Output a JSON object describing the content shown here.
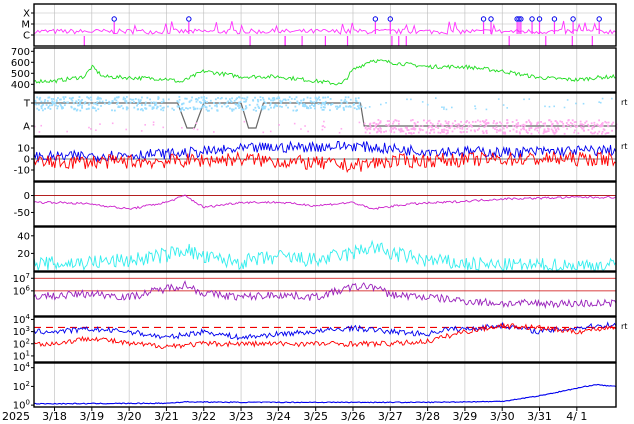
{
  "chart_data": {
    "type": "line",
    "year_label": "2025",
    "x_dates": [
      "3/18",
      "3/19",
      "3/20",
      "3/21",
      "3/22",
      "3/23",
      "3/24",
      "3/25",
      "3/26",
      "3/27",
      "3/28",
      "3/29",
      "3/30",
      "3/31",
      "4/ 1"
    ],
    "side_mark": "rt",
    "colors": {
      "magenta": "#ff33ff",
      "green": "#22dd22",
      "cyan_light": "#99ddff",
      "pink_light": "#ffaaee",
      "red": "#ff0000",
      "blue": "#0000ee",
      "purple": "#cc22cc",
      "cyan": "#33eeee",
      "violet": "#9922bb",
      "gray": "#666666",
      "grid": "#bbbbbb"
    },
    "panels": [
      {
        "id": "xray-class",
        "ticks": [
          "X",
          "M",
          "C"
        ],
        "flare_marks_at_day_index": [
          1.6,
          3.6,
          8.6,
          9.0,
          11.5,
          11.7,
          12.4,
          12.45,
          12.5,
          12.8,
          13.0,
          13.4,
          13.9,
          14.6
        ],
        "series": [
          {
            "color_key": "magenta"
          }
        ]
      },
      {
        "id": "solar-wind-speed",
        "ticks": [
          "700",
          "600",
          "500",
          "400"
        ],
        "ylim": [
          330,
          730
        ],
        "series": [
          {
            "color_key": "green",
            "anchors": [
              [
                0,
                430
              ],
              [
                0.8,
                470
              ],
              [
                1.0,
                560
              ],
              [
                1.3,
                470
              ],
              [
                2.0,
                460
              ],
              [
                3.0,
                450
              ],
              [
                3.4,
                420
              ],
              [
                4.0,
                520
              ],
              [
                5.0,
                470
              ],
              [
                6.0,
                470
              ],
              [
                7.0,
                430
              ],
              [
                7.7,
                400
              ],
              [
                8.0,
                530
              ],
              [
                8.5,
                620
              ],
              [
                9.0,
                600
              ],
              [
                10.0,
                560
              ],
              [
                11.0,
                560
              ],
              [
                12.0,
                520
              ],
              [
                13.0,
                460
              ],
              [
                14.0,
                440
              ],
              [
                14.5,
                460
              ],
              [
                15.0,
                470
              ]
            ]
          }
        ]
      },
      {
        "id": "polarity",
        "ticks": [
          "T",
          "A"
        ],
        "side": "rt",
        "series": [
          {
            "color_key": "gray"
          },
          {
            "color_key": "cyan_light"
          },
          {
            "color_key": "pink_light"
          }
        ]
      },
      {
        "id": "imf",
        "ticks": [
          "10",
          "0",
          "-10"
        ],
        "ylim": [
          -20,
          20
        ],
        "side": "rt",
        "series": [
          {
            "color_key": "blue",
            "anchors": [
              [
                0,
                2
              ],
              [
                3.3,
                5
              ],
              [
                5.5,
                10
              ],
              [
                8.0,
                12
              ],
              [
                9.5,
                8
              ],
              [
                12.0,
                6
              ],
              [
                15.0,
                8
              ]
            ]
          },
          {
            "color_key": "red",
            "anchors": [
              [
                0,
                -3
              ],
              [
                3.0,
                -2
              ],
              [
                5.0,
                0
              ],
              [
                8.0,
                -6
              ],
              [
                9.0,
                -2
              ],
              [
                12.0,
                0
              ],
              [
                15.0,
                0
              ]
            ]
          }
        ]
      },
      {
        "id": "dst",
        "ticks": [
          "0",
          "-50"
        ],
        "ylim": [
          -90,
          40
        ],
        "series": [
          {
            "color_key": "purple",
            "anchors": [
              [
                0,
                -20
              ],
              [
                1.0,
                -25
              ],
              [
                2.0,
                -40
              ],
              [
                3.0,
                -20
              ],
              [
                3.5,
                0
              ],
              [
                4.0,
                -35
              ],
              [
                5.0,
                -20
              ],
              [
                6.0,
                -20
              ],
              [
                7.0,
                -30
              ],
              [
                8.0,
                -20
              ],
              [
                8.5,
                -40
              ],
              [
                9.5,
                -25
              ],
              [
                10.5,
                -20
              ],
              [
                12.0,
                -10
              ],
              [
                14.0,
                -5
              ],
              [
                15.0,
                -5
              ]
            ]
          }
        ]
      },
      {
        "id": "kp-density",
        "ticks": [
          "40",
          "20"
        ],
        "ylim": [
          0,
          50
        ],
        "series": [
          {
            "color_key": "cyan",
            "anchors": [
              [
                0,
                8
              ],
              [
                1.0,
                10
              ],
              [
                2.0,
                12
              ],
              [
                3.0,
                18
              ],
              [
                3.5,
                25
              ],
              [
                4.0,
                15
              ],
              [
                5.0,
                10
              ],
              [
                6.0,
                16
              ],
              [
                7.0,
                12
              ],
              [
                8.0,
                20
              ],
              [
                8.5,
                28
              ],
              [
                9.0,
                20
              ],
              [
                10.0,
                12
              ],
              [
                11.0,
                8
              ],
              [
                12.0,
                6
              ],
              [
                15.0,
                6
              ]
            ]
          }
        ]
      },
      {
        "id": "electron-flux",
        "ticks": [
          "10^7",
          "10^6"
        ],
        "ylim_log10": [
          4,
          7.5
        ],
        "series": [
          {
            "color_key": "violet",
            "anchors": [
              [
                0,
                5.6
              ],
              [
                1.0,
                5.8
              ],
              [
                2.0,
                5.5
              ],
              [
                3.0,
                6.2
              ],
              [
                3.5,
                6.5
              ],
              [
                4.0,
                5.8
              ],
              [
                5.0,
                5.5
              ],
              [
                6.0,
                5.7
              ],
              [
                7.0,
                5.5
              ],
              [
                8.0,
                6.3
              ],
              [
                8.5,
                6.4
              ],
              [
                9.0,
                5.7
              ],
              [
                10.0,
                5.5
              ],
              [
                11.0,
                5.2
              ],
              [
                12.0,
                5.0
              ],
              [
                15.0,
                5.0
              ]
            ]
          }
        ]
      },
      {
        "id": "proton-flux",
        "ticks": [
          "10^4",
          "10^3",
          "10^2",
          "10^1"
        ],
        "ylim_log10": [
          0.5,
          4.2
        ],
        "side": "rt",
        "series": [
          {
            "color_key": "blue",
            "anchors": [
              [
                0,
                3.0
              ],
              [
                1.0,
                3.2
              ],
              [
                2.0,
                3.0
              ],
              [
                3.0,
                2.5
              ],
              [
                4.0,
                3.0
              ],
              [
                5.0,
                2.5
              ],
              [
                6.0,
                2.8
              ],
              [
                7.0,
                3.0
              ],
              [
                8.0,
                3.3
              ],
              [
                9.0,
                3.0
              ],
              [
                10.0,
                2.8
              ],
              [
                10.5,
                3.2
              ],
              [
                11.0,
                3.2
              ],
              [
                12.0,
                3.5
              ],
              [
                13.0,
                3.0
              ],
              [
                14.0,
                3.3
              ],
              [
                15.0,
                3.6
              ]
            ]
          },
          {
            "color_key": "red",
            "anchors": [
              [
                0,
                2.0
              ],
              [
                1.0,
                2.5
              ],
              [
                2.0,
                2.0
              ],
              [
                3.0,
                1.8
              ],
              [
                4.0,
                2.0
              ],
              [
                5.0,
                2.0
              ],
              [
                6.0,
                2.0
              ],
              [
                7.0,
                2.0
              ],
              [
                8.0,
                2.0
              ],
              [
                9.0,
                2.0
              ],
              [
                10.0,
                2.2
              ],
              [
                11.0,
                3.0
              ],
              [
                12.0,
                3.5
              ],
              [
                13.0,
                3.3
              ],
              [
                14.0,
                3.0
              ],
              [
                15.0,
                3.4
              ]
            ]
          }
        ]
      },
      {
        "id": "xray-background",
        "ticks": [
          "10^4",
          "10^2",
          "10^0"
        ],
        "ylim_log10": [
          -0.2,
          4.5
        ],
        "series": [
          {
            "color_key": "blue",
            "anchors": [
              [
                0,
                0.15
              ],
              [
                3.0,
                0.2
              ],
              [
                3.5,
                0.35
              ],
              [
                5.0,
                0.3
              ],
              [
                10.0,
                0.3
              ],
              [
                12.0,
                0.4
              ],
              [
                13.0,
                1.0
              ],
              [
                14.0,
                1.8
              ],
              [
                14.5,
                2.2
              ],
              [
                15.0,
                2.0
              ]
            ]
          }
        ]
      }
    ]
  }
}
